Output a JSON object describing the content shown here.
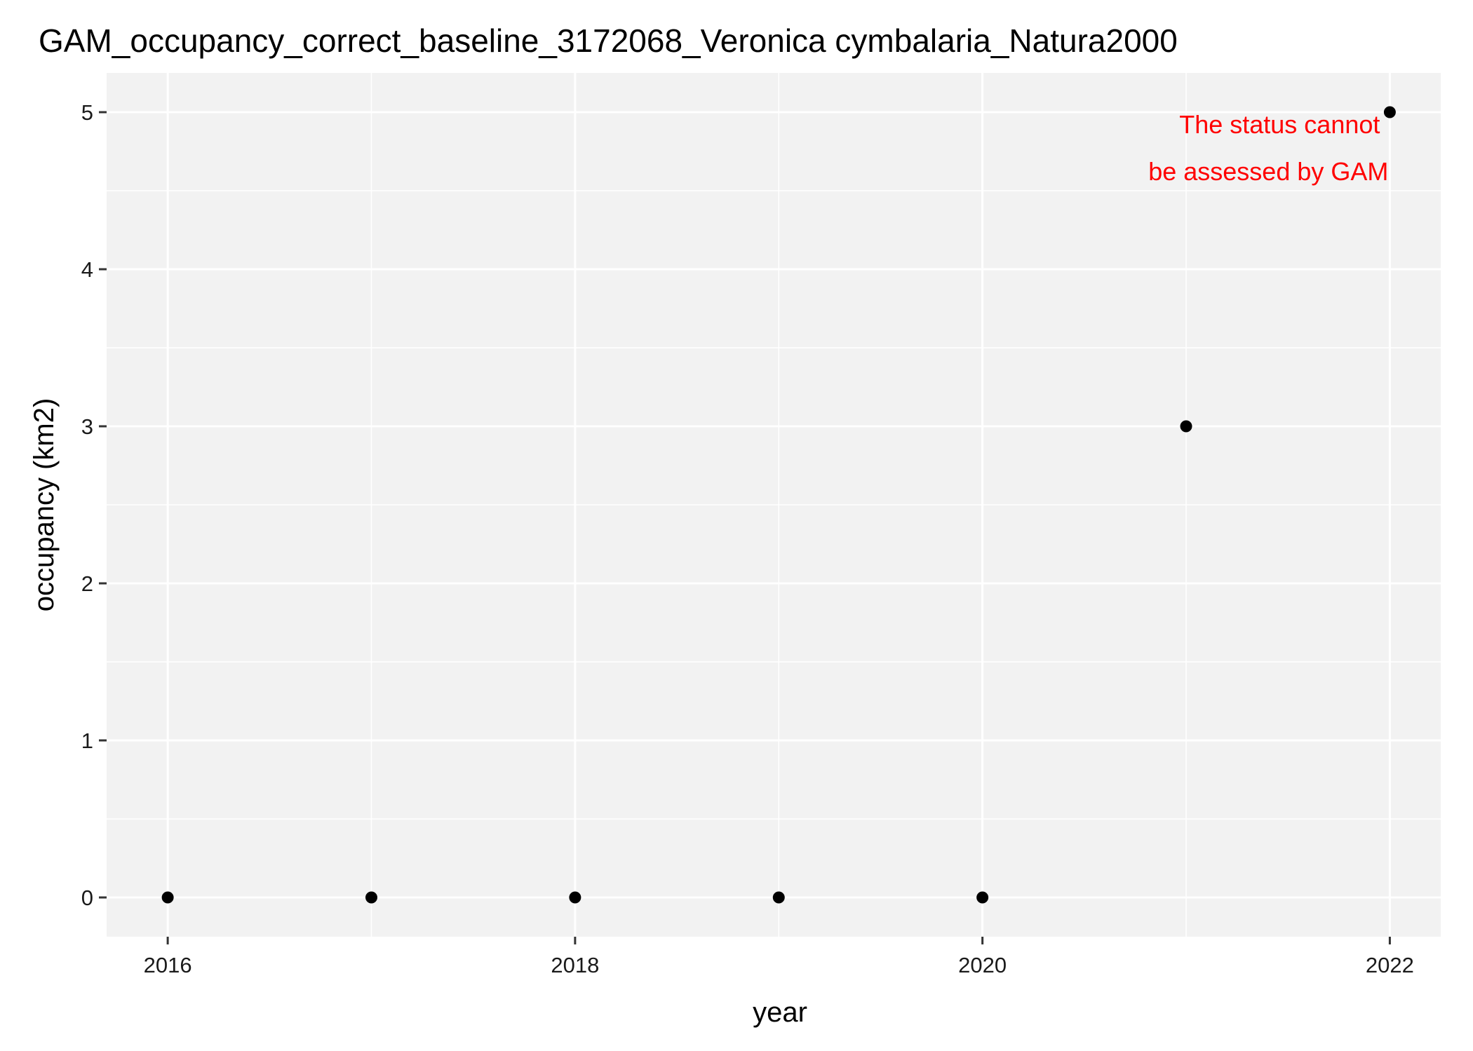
{
  "chart_data": {
    "type": "scatter",
    "title": "GAM_occupancy_correct_baseline_3172068_Veronica cymbalaria_Natura2000",
    "xlabel": "year",
    "ylabel": "occupancy (km2)",
    "x": [
      2016,
      2017,
      2018,
      2019,
      2020,
      2021,
      2022
    ],
    "y": [
      0,
      0,
      0,
      0,
      0,
      3,
      5
    ],
    "xlim": [
      2015.7,
      2022.25
    ],
    "ylim": [
      -0.25,
      5.25
    ],
    "x_ticks": [
      "2016",
      "2018",
      "2020",
      "2022"
    ],
    "y_ticks": [
      "0",
      "1",
      "2",
      "3",
      "4",
      "5"
    ],
    "grid": true,
    "legend": "none",
    "annotation": {
      "lines": [
        "The status cannot",
        "be assessed by GAM"
      ],
      "color": "#ff0000",
      "anchor_x": 2022,
      "anchor_y": 5,
      "hjust": "right"
    },
    "colors": {
      "panel_background": "#f2f2f2",
      "grid_major": "#ffffff",
      "grid_minor": "#ffffff",
      "point": "#000000",
      "axis_ticks": "#333333"
    }
  }
}
